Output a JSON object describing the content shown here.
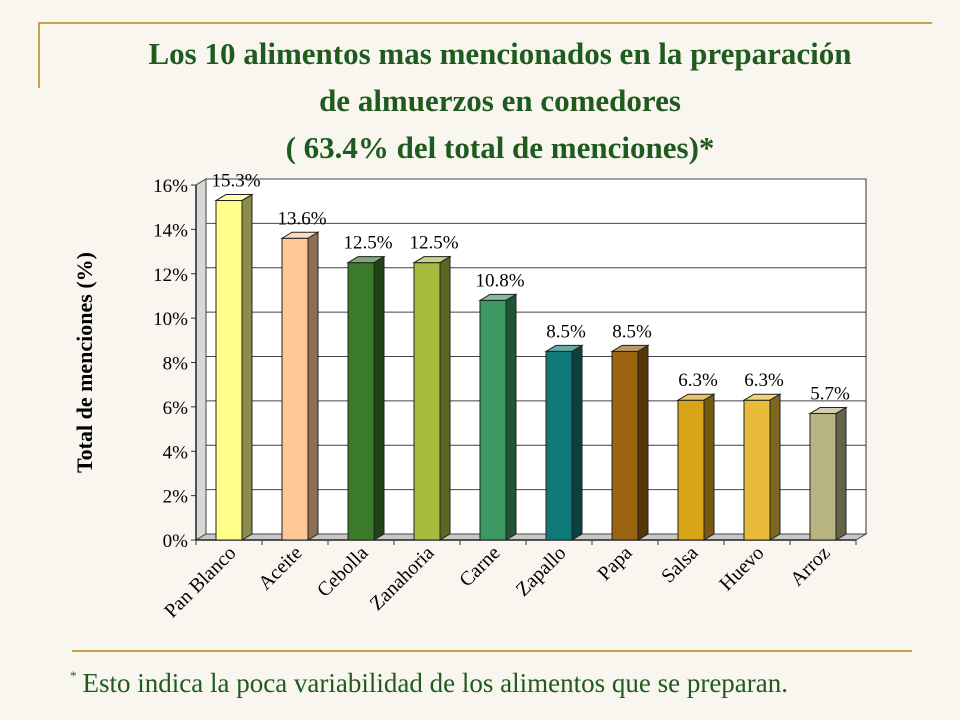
{
  "title": {
    "line1": "Los 10 alimentos mas mencionados  en la preparación",
    "line2": "de almuerzos en comedores",
    "line3": "( 63.4% del total de menciones)*"
  },
  "footnote": {
    "mark": "*",
    "text": "Esto indica la poca variabilidad de los alimentos que se preparan."
  },
  "chart_data": {
    "type": "bar",
    "categories": [
      "Pan Blanco",
      "Aceite",
      "Cebolla",
      "Zanahoria",
      "Carne",
      "Zapallo",
      "Papa",
      "Salsa",
      "Huevo",
      "Arroz"
    ],
    "values": [
      15.3,
      13.6,
      12.5,
      12.5,
      10.8,
      8.5,
      8.5,
      6.3,
      6.3,
      5.7
    ],
    "data_labels": [
      "15.3%",
      "13.6%",
      "12.5%",
      "12.5%",
      "10.8%",
      "8.5%",
      "8.5%",
      "6.3%",
      "6.3%",
      "5.7%"
    ],
    "ylabel": "Total de menciones (%)",
    "yticks": [
      "0%",
      "2%",
      "4%",
      "6%",
      "8%",
      "10%",
      "12%",
      "14%",
      "16%"
    ],
    "ylim": [
      0,
      16
    ],
    "grid": true,
    "legend": "none",
    "bar_colors": [
      "#ffff8a",
      "#ffc896",
      "#3a7a2a",
      "#a9bb3c",
      "#3a9a62",
      "#0f7a78",
      "#9a6410",
      "#d8a418",
      "#e8bc3a",
      "#b8b482"
    ],
    "colors": {
      "title": "#1f5a1f",
      "accent_line": "#c8a050",
      "background": "#f8f6ee"
    }
  }
}
